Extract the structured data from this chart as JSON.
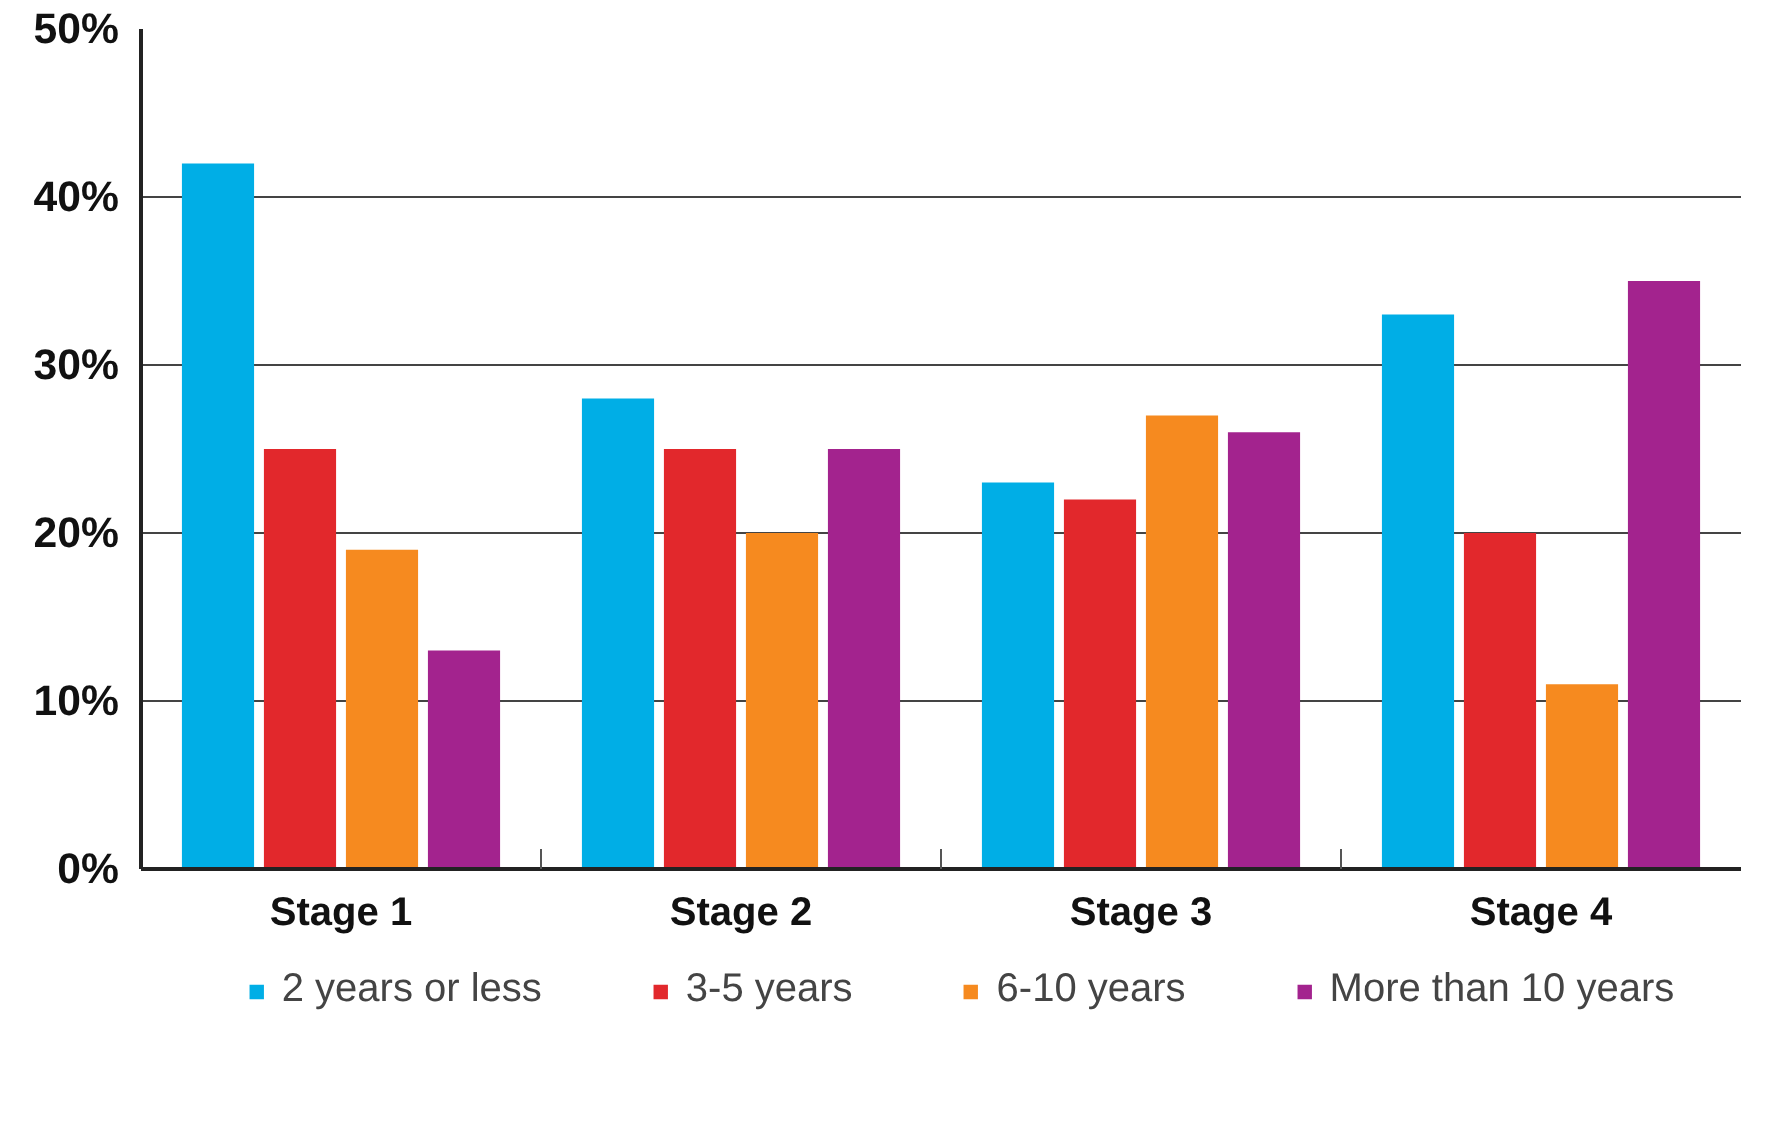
{
  "chart_data": {
    "type": "bar",
    "categories": [
      "Stage 1",
      "Stage 2",
      "Stage 3",
      "Stage 4"
    ],
    "series": [
      {
        "name": "2 years or less",
        "color": "#00aee6",
        "values": [
          42,
          28,
          23,
          33
        ]
      },
      {
        "name": "3-5 years",
        "color": "#e2282c",
        "values": [
          25,
          25,
          22,
          20
        ]
      },
      {
        "name": "6-10 years",
        "color": "#f68a1f",
        "values": [
          19,
          20,
          27,
          11
        ]
      },
      {
        "name": "More than 10 years",
        "color": "#a3238e",
        "values": [
          13,
          25,
          26,
          35
        ]
      }
    ],
    "ylim": [
      0,
      50
    ],
    "yticks": [
      {
        "value": 0,
        "label": "0%"
      },
      {
        "value": 10,
        "label": "10%"
      },
      {
        "value": 20,
        "label": "20%"
      },
      {
        "value": 30,
        "label": "30%"
      },
      {
        "value": 40,
        "label": "40%"
      },
      {
        "value": 50,
        "label": "50%"
      }
    ],
    "grid": "y",
    "legend": "bottom"
  }
}
